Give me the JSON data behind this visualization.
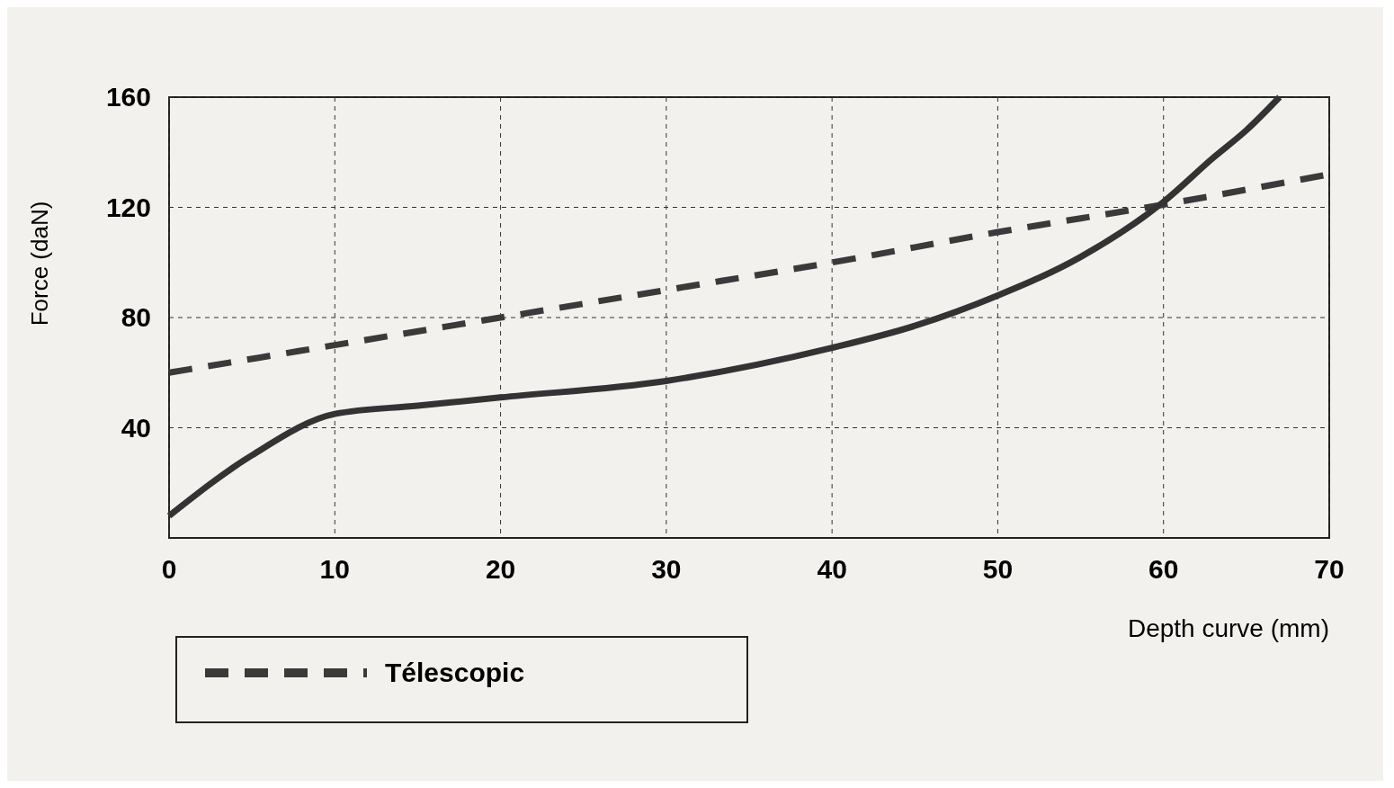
{
  "chart_data": {
    "type": "line",
    "xlabel": "Depth curve (mm)",
    "ylabel": "Force (daN)",
    "xlim": [
      0,
      70
    ],
    "xticks": [
      0,
      10,
      20,
      30,
      40,
      50,
      60,
      70
    ],
    "ylim": [
      0,
      160
    ],
    "yticks": [
      40,
      80,
      120,
      160
    ],
    "grid": true,
    "legend": "bottom left",
    "series": [
      {
        "name": "Télescopic",
        "color": "#3a3a3a",
        "line_style": "dashed",
        "x": [
          0,
          10,
          20,
          30,
          40,
          50,
          60,
          70
        ],
        "values": [
          60,
          70,
          80,
          90,
          100,
          111,
          121,
          132
        ]
      },
      {
        "color": "#333333",
        "line_style": "solid",
        "x": [
          0,
          5,
          10,
          15,
          20,
          30,
          40,
          45,
          50,
          55,
          60,
          63,
          65,
          67
        ],
        "values": [
          8,
          30,
          45,
          48,
          51,
          57,
          69,
          77,
          88,
          102,
          122,
          138,
          148,
          160
        ]
      }
    ]
  }
}
